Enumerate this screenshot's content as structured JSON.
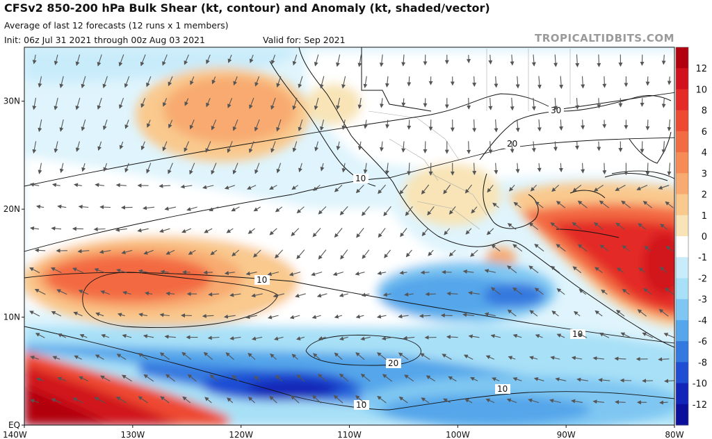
{
  "header": {
    "title": "CFSv2 850-200 hPa Bulk Shear (kt, contour) and Anomaly (kt, shaded/vector)",
    "subtitle": "Average of last 12 forecasts (12 runs x 1 members)",
    "init": "Init: 06z Jul 31 2021 through 00z Aug 03 2021",
    "valid": "Valid for: Sep 2021",
    "watermark": "TROPICALTIDBITS.COM"
  },
  "axes": {
    "lon_labels": [
      "140W",
      "130W",
      "120W",
      "110W",
      "100W",
      "90W",
      "80W"
    ],
    "lat_labels": [
      "30N",
      "20N",
      "10N",
      "EQ"
    ],
    "lon_range": [
      -140,
      -80
    ],
    "lat_range": [
      0,
      35
    ]
  },
  "colorbar": {
    "labels": [
      "12",
      "10",
      "8",
      "6",
      "4",
      "3",
      "2",
      "1",
      "0",
      "-1",
      "-2",
      "-3",
      "-4",
      "-6",
      "-8",
      "-10",
      "-12"
    ],
    "colors": [
      "#b3000f",
      "#d1121d",
      "#e32a26",
      "#ee4a32",
      "#f36b42",
      "#f68b56",
      "#f8aa70",
      "#f9c98e",
      "#f8e4b6",
      "#ffffff",
      "#c9ecfb",
      "#a8e0f7",
      "#7fc7f2",
      "#55a6ea",
      "#3479df",
      "#1f4dd3",
      "#1225b8",
      "#0b0f9c"
    ]
  },
  "contours": [
    {
      "value": "30"
    },
    {
      "value": "20"
    },
    {
      "value": "10"
    },
    {
      "value": "10"
    },
    {
      "value": "10"
    },
    {
      "value": "20"
    },
    {
      "value": "10"
    },
    {
      "value": "10"
    }
  ],
  "icons": {
    "vectors": "wind-vector-arrow-icon"
  }
}
